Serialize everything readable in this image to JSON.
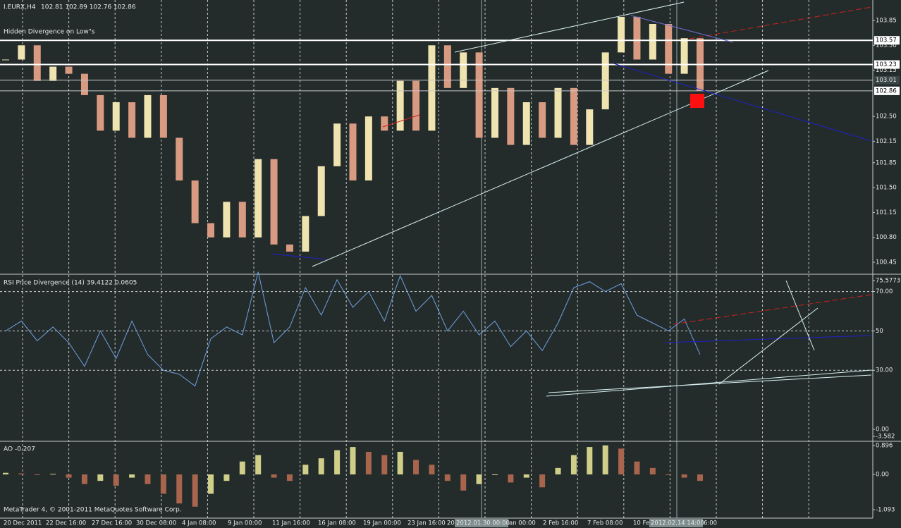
{
  "main": {
    "symbol": "I.EURX,H4",
    "ohlc_text": "102.81 102.89 102.76 102.86",
    "note": "Hidden Divergence on Low\"s",
    "ylim": [
      100.292,
      104.137
    ],
    "yticks": [
      103.85,
      {
        "value": 103.5,
        "label": "103.50"
      },
      103.15,
      {
        "value": 102.5,
        "label": "102.50"
      },
      102.15,
      101.85,
      {
        "value": 101.5,
        "label": "101.50"
      },
      101.15,
      {
        "value": 100.8,
        "label": "100.80"
      },
      100.45
    ],
    "levels": [
      103.57,
      103.23,
      103.01,
      102.86
    ],
    "close": [
      103.3,
      103.5,
      103.0,
      103.2,
      103.1,
      102.8,
      102.3,
      102.7,
      102.2,
      102.8,
      102.2,
      101.6,
      101.0,
      100.8,
      101.3,
      100.8,
      101.9,
      100.7,
      100.6,
      101.1,
      101.8,
      102.4,
      101.6,
      102.5,
      102.3,
      103.0,
      102.3,
      103.5,
      102.9,
      103.4,
      102.2,
      102.9,
      102.1,
      102.7,
      102.2,
      102.9,
      102.1,
      102.6,
      103.4,
      103.9,
      103.3,
      103.8,
      103.1,
      103.6,
      102.86
    ]
  },
  "rsi": {
    "title": "RSI Price Divergence (14) 39.4122 0.0605",
    "ylim": [
      -3.582,
      75.5773
    ],
    "yticks": [
      75.5773,
      {
        "value": 70,
        "label": "70.00"
      },
      50,
      {
        "value": 30,
        "label": "30.00"
      },
      {
        "value": 0,
        "label": "0.00"
      },
      -3.582
    ],
    "values": [
      50,
      55,
      45,
      52,
      44,
      32,
      50,
      36,
      55,
      38,
      30,
      28,
      22,
      46,
      52,
      48,
      80,
      44,
      52,
      72,
      58,
      76,
      62,
      70,
      55,
      78,
      60,
      68,
      50,
      60,
      48,
      55,
      42,
      50,
      40,
      54,
      72,
      75,
      70,
      74,
      58,
      54,
      50,
      56,
      38
    ]
  },
  "ao": {
    "title": "AO -0.207",
    "ylim": [
      -1.093,
      0.896
    ],
    "yticks": [
      0.896,
      {
        "value": 0,
        "label": "0.00"
      },
      -1.093
    ],
    "values": [
      0.05,
      0.03,
      0.0,
      0.02,
      -0.1,
      -0.3,
      -0.2,
      -0.35,
      -0.1,
      -0.3,
      -0.6,
      -0.9,
      -1.0,
      -0.6,
      -0.2,
      0.4,
      0.6,
      -0.1,
      -0.2,
      0.3,
      0.5,
      0.75,
      0.85,
      0.7,
      0.6,
      0.7,
      0.45,
      0.3,
      -0.2,
      -0.5,
      -0.3,
      0.0,
      -0.25,
      -0.1,
      -0.4,
      0.2,
      0.6,
      0.85,
      0.9,
      0.8,
      0.4,
      0.2,
      0.0,
      -0.1,
      -0.2
    ]
  },
  "footer": "MetaTrader 4, © 2001-2011 MetaQuotes Software Corp.",
  "time_labels": [
    "20 Dec 2011",
    "22 Dec 16:00",
    "27 Dec 16:00",
    "30 Dec 08:00",
    "4 Jan 08:00",
    "9 Jan 00:00",
    "11 Jan 16:00",
    "16 Jan 08:00",
    "19 Jan 00:00",
    "23 Jan 16:00",
    "20",
    "an 00:00",
    "2 Feb 16:00",
    "7 Feb 08:00",
    "10 Fe",
    "6:00"
  ],
  "cursor_labels": [
    "2012.01.30 00:00",
    "2012.02.14 14:00"
  ]
}
